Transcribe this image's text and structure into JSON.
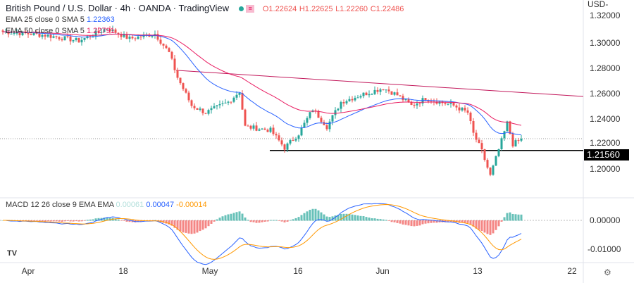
{
  "header": {
    "symbol": "British Pound / U.S. Dollar",
    "interval": "4h",
    "broker": "OANDA",
    "source": "TradingView",
    "ohlc": {
      "o": "O1.22624",
      "h": "H1.22625",
      "l": "L1.22260",
      "c": "C1.22486"
    }
  },
  "indicators": {
    "ema25": {
      "label": "EMA 25 close 0 SMA 5",
      "value": "1.22363"
    },
    "ema50": {
      "label": "EMA 50 close 0 SMA 5",
      "value": "1.22791"
    },
    "macd": {
      "label": "MACD 12 26 close 9 EMA EMA",
      "hist": "0.00061",
      "macd": "0.00047",
      "signal": "-0.00014"
    }
  },
  "price_axis": {
    "currency": "USD",
    "ticks": [
      "1.32000",
      "1.30000",
      "1.28000",
      "1.26000",
      "1.24000",
      "1.22000",
      "1.20000"
    ],
    "marker": "1.21560"
  },
  "macd_axis": {
    "ticks": [
      "0.00000",
      "-0.01000"
    ]
  },
  "time_axis": [
    "Apr",
    "18",
    "May",
    "16",
    "Jun",
    "13",
    "22"
  ],
  "colors": {
    "up": "#26a69a",
    "down": "#ef5350",
    "ema25": "#2962ff",
    "ema50": "#e91e63",
    "macd": "#2962ff",
    "signal": "#ff9800"
  },
  "price_path": [
    [
      0,
      1.3088
    ],
    [
      15,
      1.3061
    ],
    [
      27,
      1.3017
    ],
    [
      37,
      1.3116
    ],
    [
      45,
      1.3033
    ],
    [
      54,
      1.3072
    ],
    [
      59,
      1.2923
    ],
    [
      62,
      1.2729
    ],
    [
      67,
      1.2508
    ],
    [
      72,
      1.2453
    ],
    [
      80,
      1.2536
    ],
    [
      84,
      1.2619
    ],
    [
      86,
      1.2343
    ],
    [
      95,
      1.2315
    ],
    [
      100,
      1.2177
    ],
    [
      105,
      1.2288
    ],
    [
      110,
      1.2481
    ],
    [
      115,
      1.2343
    ],
    [
      120,
      1.2536
    ],
    [
      127,
      1.2591
    ],
    [
      135,
      1.2646
    ],
    [
      140,
      1.2591
    ],
    [
      145,
      1.2508
    ],
    [
      150,
      1.2564
    ],
    [
      155,
      1.2536
    ],
    [
      160,
      1.2508
    ],
    [
      165,
      1.2453
    ],
    [
      167,
      1.2288
    ],
    [
      170,
      1.215
    ],
    [
      173,
      1.1957
    ],
    [
      175,
      1.2095
    ],
    [
      179,
      1.2371
    ],
    [
      181,
      1.2205
    ],
    [
      184,
      1.2244
    ]
  ],
  "support_level": 1.2156,
  "trendline": [
    1.2785,
    1.258
  ]
}
